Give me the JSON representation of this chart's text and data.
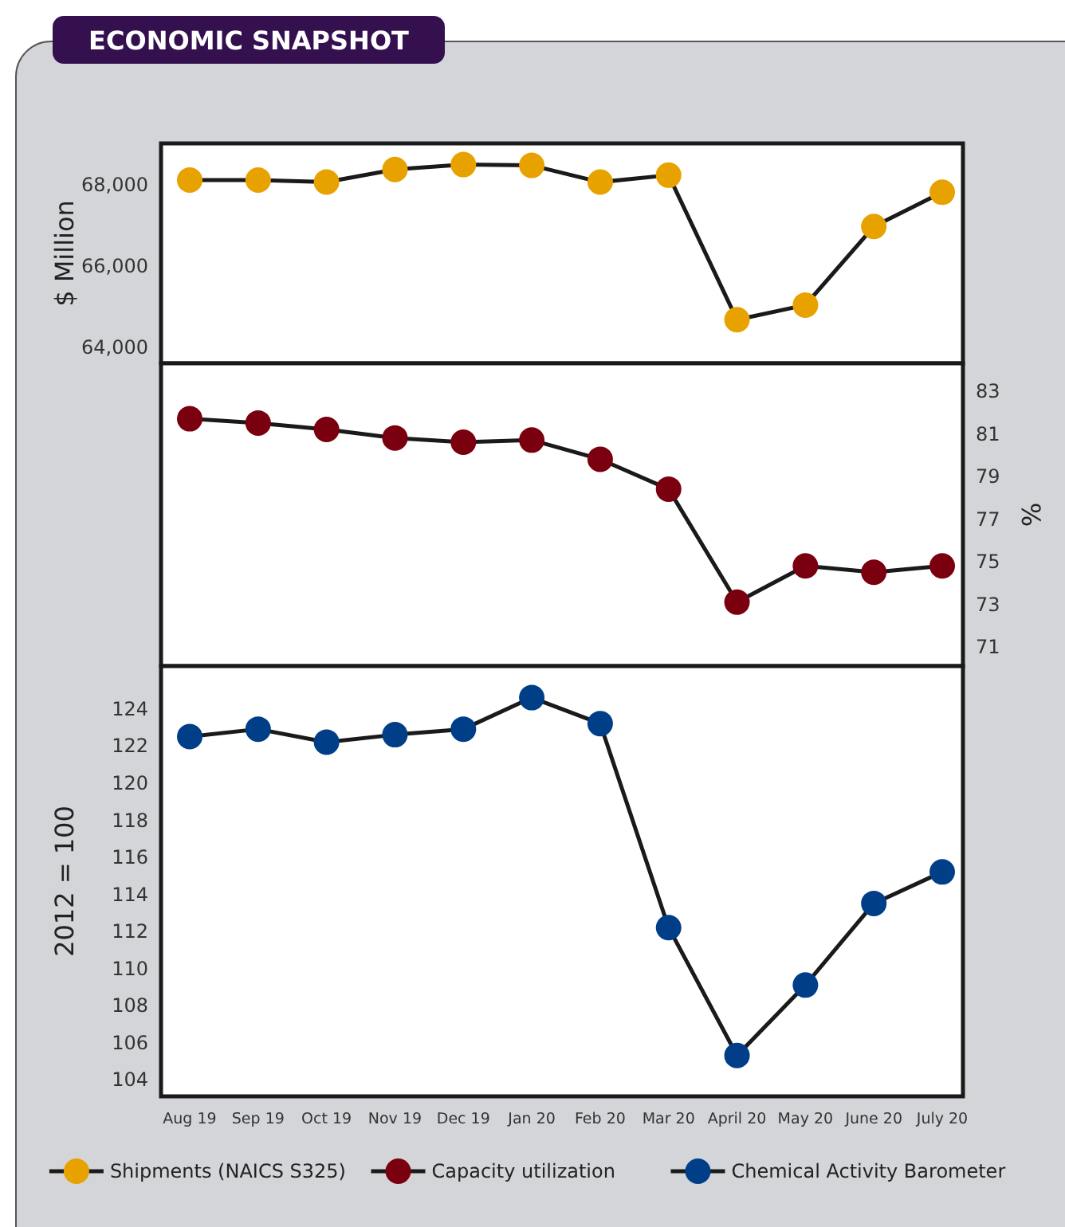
{
  "chart_data": [
    {
      "type": "line",
      "title": "ECONOMIC SNAPSHOT",
      "ylabel": "$ Million",
      "categories": [
        "Aug 19",
        "Sep 19",
        "Oct 19",
        "Nov 19",
        "Dec 19",
        "Jan 20",
        "Feb 20",
        "Mar 20",
        "April 20",
        "May 20",
        "June 20",
        "July 20"
      ],
      "ylim": [
        63600,
        69000
      ],
      "yticks": [
        {
          "value": 64000,
          "label": "64,000"
        },
        {
          "value": 66000,
          "label": "66,000"
        },
        {
          "value": 68000,
          "label": "68,000"
        }
      ],
      "tick_labels": "y",
      "marker": "circle",
      "legend": "bottom",
      "series": [
        {
          "name": "Shipments (NAICS S325)",
          "color": "#e8a200",
          "values": [
            68100,
            68100,
            68050,
            68360,
            68480,
            68460,
            68050,
            68220,
            64670,
            65030,
            66960,
            67800
          ]
        }
      ]
    },
    {
      "type": "line",
      "y2label": "%",
      "categories": [
        "Aug 19",
        "Sep 19",
        "Oct 19",
        "Nov 19",
        "Dec 19",
        "Jan 20",
        "Feb 20",
        "Mar 20",
        "April 20",
        "May 20",
        "June 20",
        "July 20"
      ],
      "y2lim": [
        70.1,
        84.3
      ],
      "y2ticks": [
        71,
        73,
        75,
        77,
        79,
        81,
        83
      ],
      "tick_labels": "y",
      "marker": "circle",
      "legend": "bottom",
      "series": [
        {
          "name": "Capacity utilization",
          "color": "#7a0010",
          "axis": "y2",
          "values": [
            81.7,
            81.5,
            81.2,
            80.8,
            80.6,
            80.7,
            79.8,
            78.4,
            73.1,
            74.8,
            74.5,
            74.8
          ]
        }
      ]
    },
    {
      "type": "line",
      "ylabel": "2012 = 100",
      "categories": [
        "Aug 19",
        "Sep 19",
        "Oct 19",
        "Nov 19",
        "Dec 19",
        "Jan 20",
        "Feb 20",
        "Mar 20",
        "April 20",
        "May 20",
        "June 20",
        "July 20"
      ],
      "ylim": [
        103.1,
        126.3
      ],
      "yticks": [
        104,
        106,
        108,
        110,
        112,
        114,
        116,
        118,
        120,
        122,
        124
      ],
      "marker": "circle",
      "legend": "bottom",
      "series": [
        {
          "name": "Chemical Activity Barometer",
          "color": "#003f87",
          "values": [
            122.5,
            122.9,
            122.2,
            122.6,
            122.9,
            124.6,
            123.2,
            112.2,
            105.3,
            109.1,
            113.5,
            115.2
          ]
        }
      ]
    }
  ]
}
